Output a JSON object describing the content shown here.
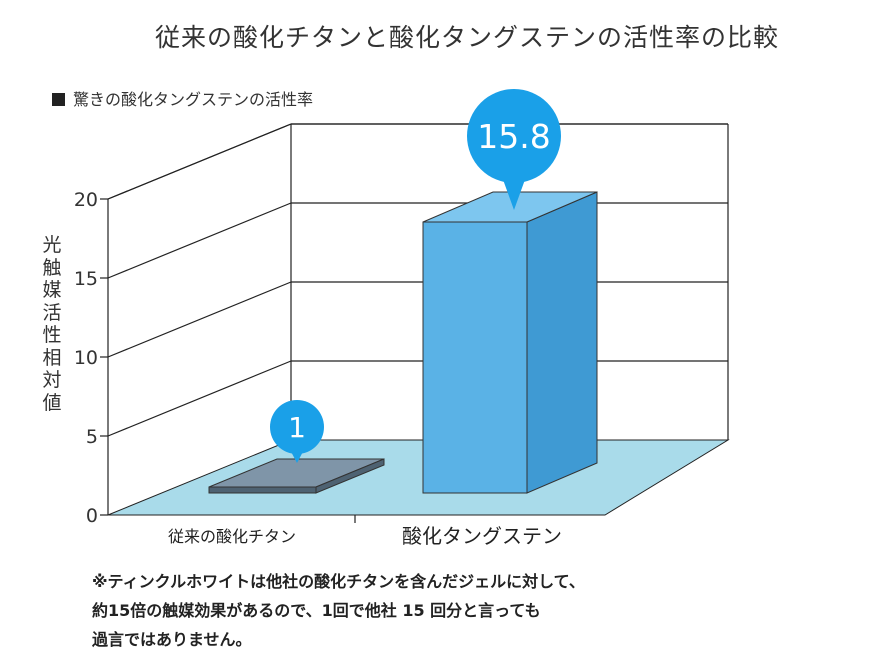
{
  "header": {
    "title": "従来の酸化チタンと酸化タングステンの活性率の比較"
  },
  "legend": {
    "label": "驚きの酸化タングステンの活性率"
  },
  "note": {
    "lines": [
      "※ティンクルホワイトは他社の酸化チタンを含んだジェルに対して、",
      "約15倍の触媒効果があるので、1回で他社 15 回分と言っても",
      "過言ではありません。"
    ]
  },
  "colors": {
    "floor": "#a9dbea",
    "bar_front": "#5ab2e6",
    "bar_side": "#3f9ad3",
    "bar_top": "#7dc6ef",
    "plate_top": "#7f95a8",
    "plate_side": "#4e6272",
    "callout": "#1aa0e8"
  },
  "chart_data": {
    "type": "bar",
    "title": "従来の酸化チタンと酸化タングステンの活性率の比較",
    "ylabel": "光触媒活性相対値",
    "xlabel": "",
    "ylim": [
      0,
      20
    ],
    "yticks": [
      "0",
      "5",
      "10",
      "15",
      "20"
    ],
    "categories": [
      "従来の酸化チタン",
      "酸化タングステン"
    ],
    "values": [
      1,
      15.8
    ],
    "data_labels": [
      "1",
      "15.8"
    ],
    "legend": [
      "驚きの酸化タングステンの活性率"
    ],
    "grid": true,
    "style": "3d"
  }
}
